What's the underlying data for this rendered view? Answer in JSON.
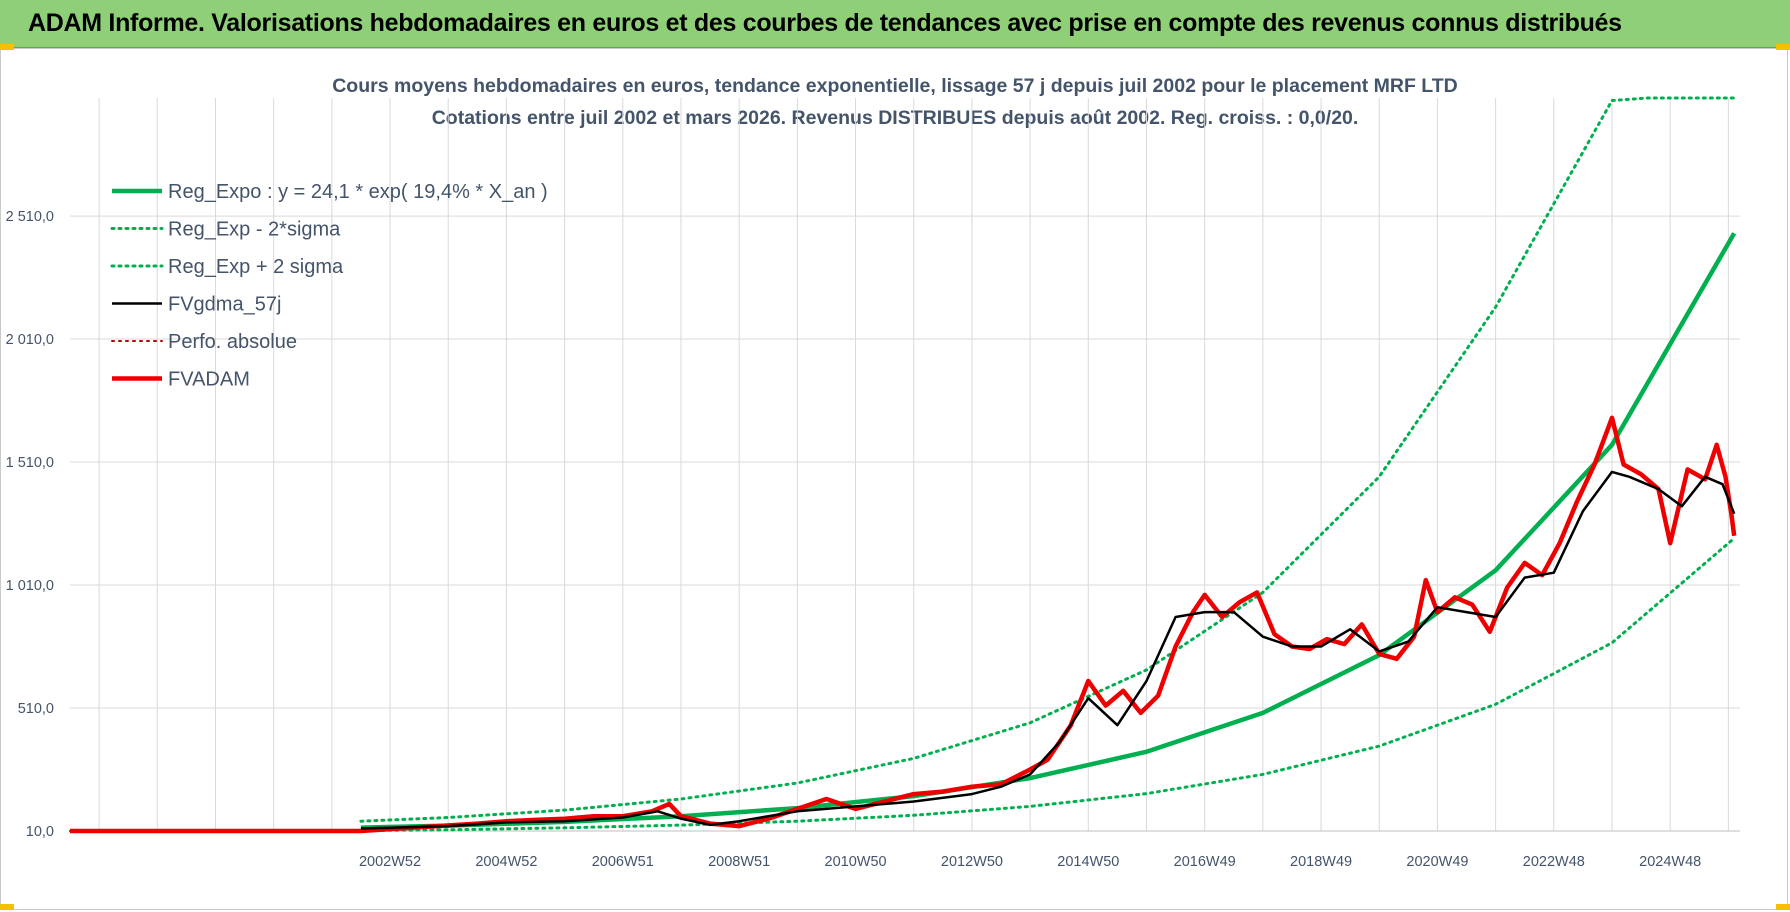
{
  "header": {
    "title": "ADAM Informe. Valorisations hebdomadaires en euros et des courbes de tendances avec prise en compte des revenus connus distribués"
  },
  "accent_colors": {
    "banner": "#8fcf78",
    "reg_expo": "#00b050",
    "fvgdma": "#000000",
    "perfo": "#c00000",
    "fvadam": "#ee0000"
  },
  "chart_data": {
    "type": "line",
    "title": "Cours moyens hebdomadaires en euros, tendance exponentielle, lissage 57 j depuis juil 2002 pour le placement MRF LTD",
    "subtitle": "Cotations entre juil 2002 et mars 2026. Revenus DISTRIBUES depuis août 2002. Reg. croiss. : 0,0/20.",
    "x_range": [
      1997.5,
      2026.2
    ],
    "y_range": [
      10,
      2990
    ],
    "grid": true,
    "legend_position": "top-left",
    "y_ticks": [
      "10,0",
      "510,0",
      "1 010,0",
      "1 510,0",
      "2 010,0",
      "2 510,0"
    ],
    "y_tick_values": [
      10,
      510,
      1010,
      1510,
      2010,
      2510
    ],
    "x_ticks": [
      "2002W52",
      "2004W52",
      "2006W51",
      "2008W51",
      "2010W50",
      "2012W50",
      "2014W50",
      "2016W49",
      "2018W49",
      "2020W49",
      "2022W48",
      "2024W48"
    ],
    "x_tick_values": [
      2003.0,
      2005.0,
      2007.0,
      2009.0,
      2011.0,
      2013.0,
      2015.0,
      2017.0,
      2019.0,
      2021.0,
      2023.0,
      2025.0
    ],
    "series": [
      {
        "name": "Reg_Expo : y = 24,1 * exp( 19,4% *  X_an )",
        "style": "solid-thick",
        "color": "#00b050",
        "x": [
          2002.5,
          2004,
          2006,
          2008,
          2010,
          2012,
          2014,
          2016,
          2018,
          2020,
          2022,
          2024,
          2026.1
        ],
        "y": [
          24,
          32,
          47,
          70,
          103,
          152,
          225,
          332,
          490,
          725,
          1070,
          1580,
          2440
        ]
      },
      {
        "name": "Reg_Exp - 2*sigma",
        "style": "dotted",
        "color": "#00b050",
        "x": [
          2002.5,
          2004,
          2006,
          2008,
          2010,
          2012,
          2014,
          2016,
          2018,
          2020,
          2022,
          2024,
          2026.1
        ],
        "y": [
          12,
          15,
          23,
          34,
          50,
          74,
          110,
          162,
          240,
          355,
          525,
          775,
          1200
        ]
      },
      {
        "name": "Reg_Exp + 2 sigma",
        "style": "dotted",
        "color": "#00b050",
        "x": [
          2002.5,
          2004,
          2006,
          2008,
          2010,
          2012,
          2014,
          2016,
          2018,
          2020,
          2022,
          2024,
          2024.6,
          2026.1
        ],
        "y": [
          50,
          65,
          95,
          140,
          205,
          305,
          450,
          665,
          980,
          1450,
          2140,
          2980,
          2990,
          2990
        ]
      },
      {
        "name": "FVgdma_57j",
        "style": "solid",
        "color": "#000000",
        "x": [
          2002.5,
          2004,
          2005,
          2006,
          2007,
          2007.6,
          2008,
          2008.5,
          2009,
          2010,
          2011,
          2012,
          2013,
          2013.5,
          2014,
          2014.5,
          2015,
          2015.5,
          2016,
          2016.5,
          2017,
          2017.5,
          2018,
          2018.5,
          2019,
          2019.5,
          2020,
          2020.5,
          2021,
          2021.5,
          2022,
          2022.5,
          2023,
          2023.5,
          2024,
          2024.3,
          2024.8,
          2025.2,
          2025.6,
          2025.9,
          2026.1
        ],
        "y": [
          20,
          30,
          45,
          50,
          65,
          90,
          60,
          35,
          50,
          90,
          110,
          130,
          160,
          190,
          240,
          370,
          550,
          440,
          620,
          880,
          900,
          900,
          800,
          760,
          760,
          830,
          740,
          780,
          920,
          900,
          880,
          1040,
          1060,
          1310,
          1470,
          1450,
          1400,
          1330,
          1450,
          1420,
          1300
        ]
      },
      {
        "name": "Perfo. absolue",
        "style": "dotted",
        "color": "#c00000",
        "x": [
          1997.5,
          2002.5
        ],
        "y": [
          10,
          10
        ]
      },
      {
        "name": "FVADAM",
        "style": "solid-thick",
        "color": "#ee0000",
        "x": [
          1997.5,
          2002.5,
          2003.5,
          2004.5,
          2005,
          2005.5,
          2006,
          2006.5,
          2007,
          2007.5,
          2007.8,
          2008,
          2008.5,
          2009,
          2009.5,
          2010,
          2010.5,
          2011,
          2011.5,
          2012,
          2012.5,
          2013,
          2013.5,
          2014,
          2014.3,
          2014.7,
          2015,
          2015.3,
          2015.6,
          2015.9,
          2016.2,
          2016.5,
          2016.8,
          2017,
          2017.3,
          2017.6,
          2017.9,
          2018.2,
          2018.5,
          2018.8,
          2019.1,
          2019.4,
          2019.7,
          2020,
          2020.3,
          2020.6,
          2020.8,
          2021,
          2021.3,
          2021.6,
          2021.9,
          2022.2,
          2022.5,
          2022.8,
          2023.1,
          2023.4,
          2023.7,
          2024,
          2024.2,
          2024.5,
          2024.8,
          2025.0,
          2025.3,
          2025.6,
          2025.8,
          2025.95,
          2026.05,
          2026.1
        ],
        "y": [
          10,
          10,
          25,
          40,
          50,
          55,
          60,
          70,
          70,
          90,
          120,
          70,
          40,
          30,
          60,
          100,
          140,
          100,
          130,
          160,
          170,
          190,
          200,
          260,
          300,
          440,
          620,
          520,
          580,
          490,
          560,
          760,
          900,
          970,
          880,
          940,
          980,
          810,
          760,
          750,
          790,
          770,
          850,
          730,
          710,
          800,
          1030,
          900,
          960,
          930,
          820,
          1000,
          1100,
          1050,
          1180,
          1350,
          1500,
          1690,
          1500,
          1460,
          1400,
          1180,
          1480,
          1440,
          1580,
          1450,
          1300,
          1210
        ]
      }
    ]
  }
}
